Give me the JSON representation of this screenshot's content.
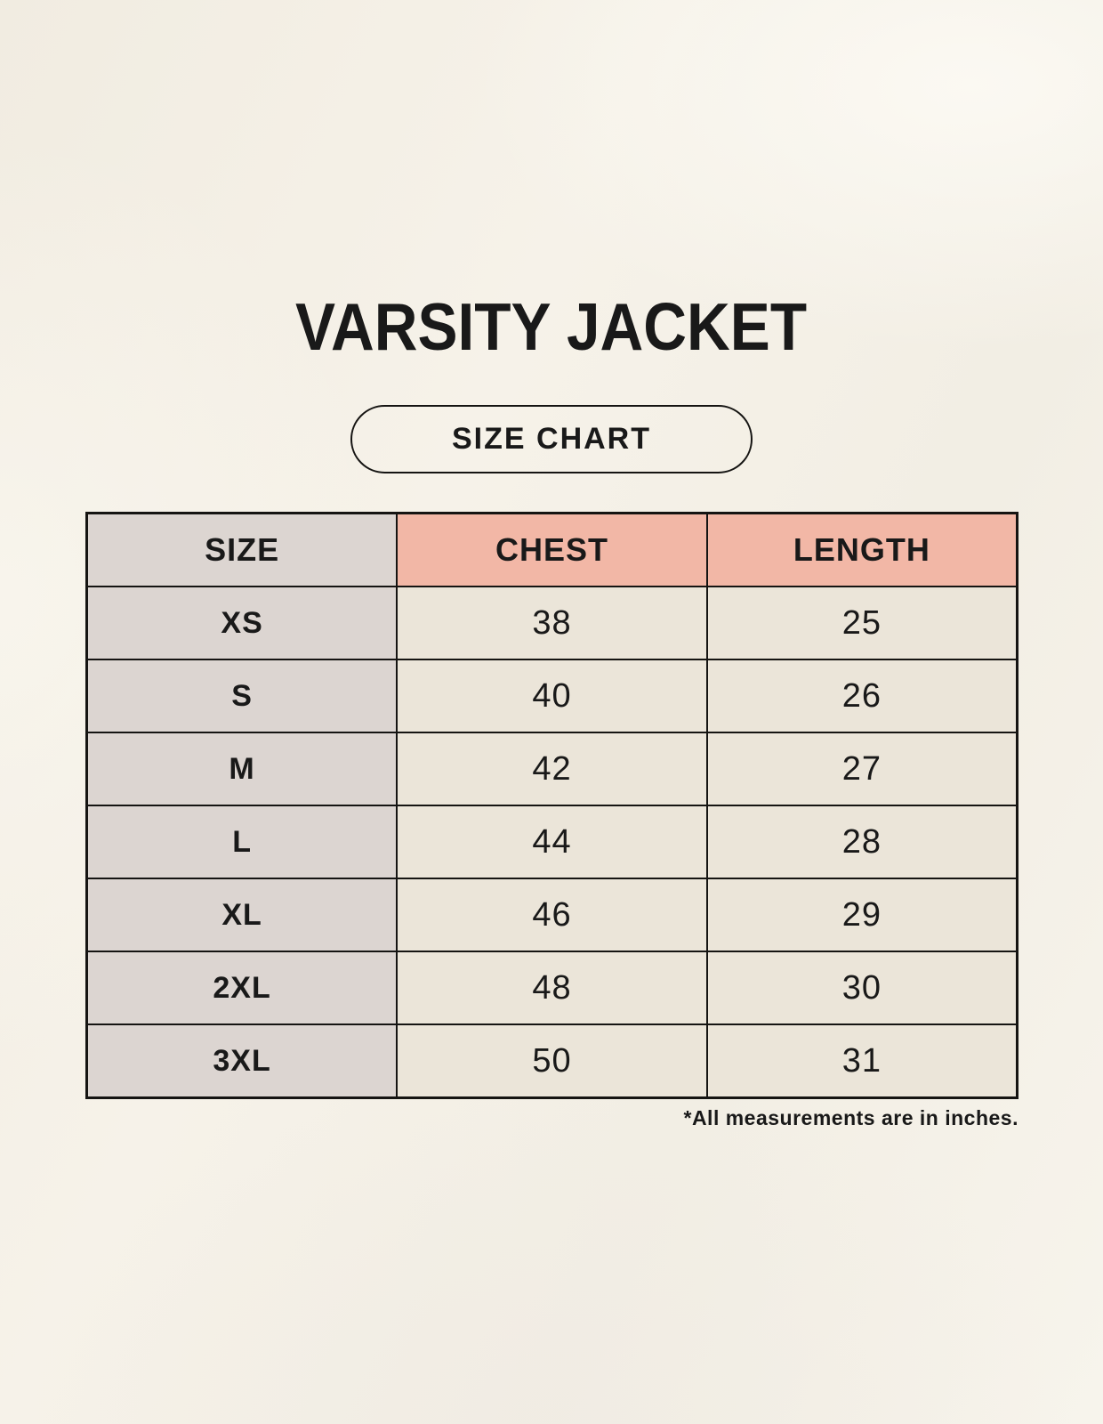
{
  "page": {
    "title": "VARSITY JACKET",
    "badge_label": "SIZE CHART",
    "footnote": "*All measurements are in inches."
  },
  "table": {
    "headers": [
      "SIZE",
      "CHEST",
      "LENGTH"
    ],
    "rows": [
      {
        "size": "XS",
        "chest": "38",
        "length": "25"
      },
      {
        "size": "S",
        "chest": "40",
        "length": "26"
      },
      {
        "size": "M",
        "chest": "42",
        "length": "27"
      },
      {
        "size": "L",
        "chest": "44",
        "length": "28"
      },
      {
        "size": "XL",
        "chest": "46",
        "length": "29"
      },
      {
        "size": "2XL",
        "chest": "48",
        "length": "30"
      },
      {
        "size": "3XL",
        "chest": "50",
        "length": "31"
      }
    ]
  },
  "colors": {
    "bg": "#f4f0e7",
    "cell-cream": "#ebe5d9",
    "cell-gray": "#dcd5d1",
    "header-pink": "#f2b7a6",
    "line": "#151412",
    "text": "#191919"
  }
}
